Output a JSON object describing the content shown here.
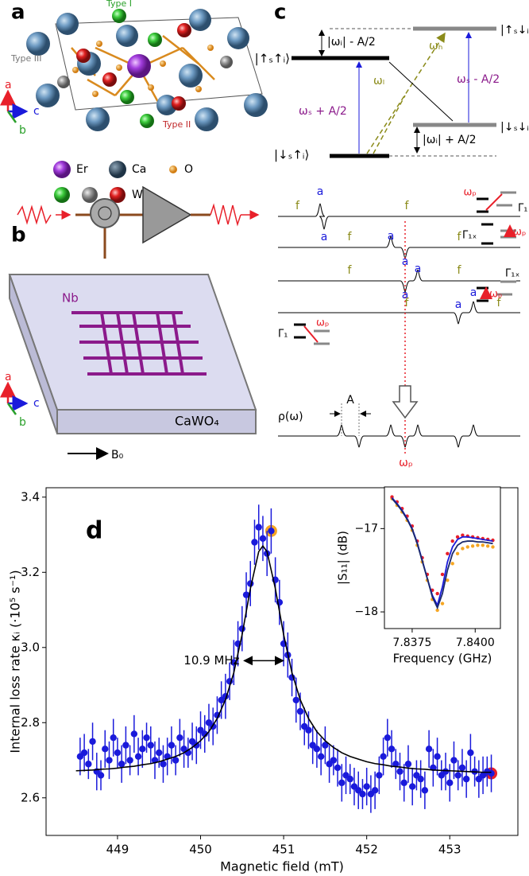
{
  "figure": {
    "panel_labels": [
      "a",
      "b",
      "c"
    ],
    "crystal": {
      "type_labels": [
        "Type I",
        "Type III",
        "Type II"
      ],
      "axes": [
        "a",
        "c",
        "b"
      ],
      "legend": [
        "Er",
        "Ca",
        "O",
        "W"
      ]
    },
    "circuit": {
      "material": "Nb",
      "substrate": "CaWO₄",
      "axes": [
        "a",
        "c",
        "b"
      ],
      "field": "B₀"
    },
    "levels": {
      "states": [
        "|↑ₛ↓ᵢ⟩",
        "|↑ₛ↑ᵢ⟩",
        "|↓ₛ↓ᵢ⟩",
        "|↓ₛ↑ᵢ⟩"
      ],
      "transitions": [
        "ωₛ + A/2",
        "ωₛ - A/2",
        "ωₕ",
        "ωₗ"
      ],
      "splittings": [
        "|ωᵢ| - A/2",
        "|ωᵢ| + A/2"
      ]
    },
    "spectra": {
      "rows": [
        [
          "f",
          "a",
          "a",
          "f"
        ],
        [
          "f",
          "a",
          "a",
          "f"
        ],
        [
          "f",
          "a",
          "a",
          "f"
        ],
        [
          "f",
          "a",
          "a",
          "f"
        ]
      ],
      "insets": [
        [
          "ωₚ",
          "Γ₁"
        ],
        [
          "Γ₁ₓ",
          "ωₚ"
        ],
        [
          "Γ₁ₓ",
          "ωₚ"
        ],
        [
          "Γ₁",
          "ωₚ"
        ]
      ],
      "density": "ρ(ω)",
      "width": "A",
      "pump": "ωₚ"
    }
  },
  "chart_data": [
    {
      "type": "scatter",
      "panel_label": "d",
      "xlabel": "Magnetic field (mT)",
      "ylabel": "Internal loss rate κᵢ (·10⁵ s⁻¹)",
      "xlim": [
        448.14,
        453.82
      ],
      "ylim": [
        2.5,
        3.425
      ],
      "xticks": [
        449,
        450,
        451,
        452,
        453
      ],
      "yticks": [
        2.6,
        2.8,
        {
          "value": 3,
          "label": "3.0"
        },
        3.2,
        3.4
      ],
      "annotation": {
        "text": "10.9 MHz",
        "x": [
          450.45,
          451.07
        ],
        "y": 2.965
      },
      "series": [
        {
          "mode": "ring",
          "color": "#f5a623",
          "x": [
            450.85
          ],
          "values": [
            3.31
          ]
        },
        {
          "mode": "ring",
          "color": "#e8202a",
          "x": [
            453.5
          ],
          "values": [
            2.665
          ]
        },
        {
          "mode": "markers",
          "color": "#1a1adb",
          "x": [
            448.55,
            448.6,
            448.65,
            448.7,
            448.75,
            448.8,
            448.85,
            448.9,
            448.95,
            449,
            449.05,
            449.1,
            449.15,
            449.2,
            449.25,
            449.3,
            449.35,
            449.4,
            449.45,
            449.5,
            449.55,
            449.6,
            449.65,
            449.7,
            449.75,
            449.8,
            449.85,
            449.9,
            449.95,
            450,
            450.05,
            450.1,
            450.15,
            450.2,
            450.25,
            450.3,
            450.35,
            450.4,
            450.45,
            450.5,
            450.55,
            450.6,
            450.65,
            450.7,
            450.75,
            450.8,
            450.85,
            450.9,
            450.95,
            451,
            451.05,
            451.1,
            451.15,
            451.2,
            451.25,
            451.3,
            451.35,
            451.4,
            451.45,
            451.5,
            451.55,
            451.6,
            451.65,
            451.7,
            451.75,
            451.8,
            451.85,
            451.9,
            451.95,
            452,
            452.05,
            452.1,
            452.15,
            452.2,
            452.25,
            452.3,
            452.35,
            452.4,
            452.45,
            452.5,
            452.55,
            452.6,
            452.65,
            452.7,
            452.75,
            452.8,
            452.85,
            452.9,
            452.95,
            453,
            453.05,
            453.1,
            453.15,
            453.2,
            453.25,
            453.3,
            453.35,
            453.4,
            453.45,
            453.5
          ],
          "values": [
            2.71,
            2.72,
            2.69,
            2.75,
            2.67,
            2.66,
            2.73,
            2.7,
            2.76,
            2.72,
            2.69,
            2.74,
            2.7,
            2.77,
            2.71,
            2.73,
            2.76,
            2.74,
            2.7,
            2.72,
            2.69,
            2.71,
            2.74,
            2.7,
            2.76,
            2.73,
            2.72,
            2.75,
            2.74,
            2.78,
            2.77,
            2.8,
            2.79,
            2.82,
            2.86,
            2.87,
            2.91,
            2.96,
            3.01,
            3.05,
            3.14,
            3.17,
            3.28,
            3.32,
            3.29,
            3.25,
            3.31,
            3.18,
            3.12,
            3.01,
            2.98,
            2.92,
            2.86,
            2.83,
            2.79,
            2.78,
            2.74,
            2.73,
            2.71,
            2.74,
            2.69,
            2.7,
            2.68,
            2.64,
            2.66,
            2.65,
            2.63,
            2.62,
            2.61,
            2.63,
            2.61,
            2.62,
            2.66,
            2.71,
            2.76,
            2.73,
            2.69,
            2.67,
            2.64,
            2.69,
            2.63,
            2.66,
            2.65,
            2.62,
            2.73,
            2.68,
            2.71,
            2.66,
            2.67,
            2.64,
            2.7,
            2.66,
            2.68,
            2.65,
            2.72,
            2.67,
            2.65,
            2.66,
            2.67,
            2.665
          ],
          "errors": [
            0.05,
            0.05,
            0.04,
            0.05,
            0.05,
            0.04,
            0.05,
            0.05,
            0.05,
            0.04,
            0.05,
            0.05,
            0.04,
            0.05,
            0.05,
            0.05,
            0.04,
            0.05,
            0.05,
            0.04,
            0.05,
            0.05,
            0.05,
            0.04,
            0.05,
            0.05,
            0.04,
            0.05,
            0.05,
            0.05,
            0.05,
            0.05,
            0.05,
            0.05,
            0.05,
            0.06,
            0.05,
            0.06,
            0.06,
            0.06,
            0.06,
            0.06,
            0.06,
            0.06,
            0.06,
            0.06,
            0.06,
            0.06,
            0.06,
            0.06,
            0.06,
            0.05,
            0.06,
            0.05,
            0.05,
            0.05,
            0.05,
            0.05,
            0.05,
            0.05,
            0.05,
            0.04,
            0.05,
            0.05,
            0.05,
            0.04,
            0.05,
            0.05,
            0.04,
            0.05,
            0.05,
            0.05,
            0.05,
            0.05,
            0.05,
            0.05,
            0.04,
            0.05,
            0.05,
            0.05,
            0.05,
            0.04,
            0.05,
            0.05,
            0.05,
            0.05,
            0.05,
            0.04,
            0.05,
            0.05,
            0.05,
            0.04,
            0.05,
            0.05,
            0.05,
            0.04,
            0.05,
            0.05,
            0.04,
            0.05
          ]
        },
        {
          "mode": "line",
          "color": "#000000",
          "x": [
            448.5,
            448.6,
            448.7,
            448.8,
            448.9,
            449,
            449.1,
            449.2,
            449.3,
            449.4,
            449.5,
            449.6,
            449.7,
            449.8,
            449.9,
            450,
            450.1,
            450.2,
            450.3,
            450.4,
            450.5,
            450.6,
            450.7,
            450.75,
            450.8,
            450.9,
            451,
            451.1,
            451.2,
            451.3,
            451.4,
            451.5,
            451.6,
            451.7,
            451.8,
            451.9,
            452,
            452.1,
            452.2,
            452.3,
            452.4,
            452.5,
            452.6,
            452.7,
            452.8,
            452.9,
            453,
            453.1,
            453.2,
            453.3,
            453.4,
            453.5
          ],
          "values": [
            2.672,
            2.673,
            2.674,
            2.676,
            2.677,
            2.679,
            2.682,
            2.684,
            2.688,
            2.691,
            2.696,
            2.703,
            2.71,
            2.72,
            2.734,
            2.752,
            2.776,
            2.811,
            2.861,
            2.933,
            3.034,
            3.157,
            3.255,
            3.27,
            3.255,
            3.157,
            3.034,
            2.933,
            2.861,
            2.811,
            2.776,
            2.752,
            2.734,
            2.72,
            2.71,
            2.703,
            2.696,
            2.691,
            2.688,
            2.684,
            2.682,
            2.679,
            2.677,
            2.676,
            2.674,
            2.673,
            2.672,
            2.671,
            2.67,
            2.669,
            2.668,
            2.668
          ]
        }
      ]
    },
    {
      "type": "scatter",
      "xlabel": "Frequency (GHz)",
      "ylabel": "|S₁₁| (dB)",
      "xlim": [
        7.8364,
        7.841
      ],
      "ylim": [
        -18.2,
        -16.5
      ],
      "xticks": [
        7.8375,
        {
          "value": 7.84,
          "label": "7.8400"
        }
      ],
      "yticks": [
        {
          "value": -17,
          "label": "−17"
        },
        {
          "value": -18,
          "label": "−18"
        }
      ],
      "series": [
        {
          "mode": "markers",
          "color": "#f5a623",
          "x": [
            7.8367,
            7.8369,
            7.8371,
            7.8373,
            7.8375,
            7.8377,
            7.8379,
            7.8381,
            7.8383,
            7.8385,
            7.8387,
            7.8389,
            7.8391,
            7.8393,
            7.8395,
            7.8397,
            7.8399,
            7.8401,
            7.8403,
            7.8405,
            7.8407
          ],
          "values": [
            -16.64,
            -16.72,
            -16.8,
            -16.9,
            -17.02,
            -17.2,
            -17.4,
            -17.62,
            -17.85,
            -17.98,
            -17.9,
            -17.62,
            -17.42,
            -17.3,
            -17.24,
            -17.22,
            -17.21,
            -17.2,
            -17.2,
            -17.21,
            -17.22
          ]
        },
        {
          "mode": "markers",
          "color": "#e8202a",
          "x": [
            7.8367,
            7.8369,
            7.8371,
            7.8373,
            7.8375,
            7.8377,
            7.8379,
            7.8381,
            7.8383,
            7.8385,
            7.8387,
            7.8389,
            7.8391,
            7.8393,
            7.8395,
            7.8397,
            7.8399,
            7.8401,
            7.8403,
            7.8405,
            7.8407
          ],
          "values": [
            -16.62,
            -16.68,
            -16.76,
            -16.85,
            -16.97,
            -17.15,
            -17.35,
            -17.55,
            -17.74,
            -17.78,
            -17.55,
            -17.3,
            -17.15,
            -17.1,
            -17.08,
            -17.09,
            -17.1,
            -17.11,
            -17.12,
            -17.13,
            -17.14
          ]
        },
        {
          "mode": "line",
          "color": "#1a1adb",
          "x": [
            7.8367,
            7.8369,
            7.8371,
            7.8373,
            7.8375,
            7.8377,
            7.8379,
            7.8381,
            7.8383,
            7.8385,
            7.8387,
            7.8389,
            7.8391,
            7.8393,
            7.8395,
            7.8397,
            7.8399,
            7.8401,
            7.8403,
            7.8405,
            7.8407
          ],
          "values": [
            -16.63,
            -16.7,
            -16.78,
            -16.88,
            -17,
            -17.17,
            -17.38,
            -17.6,
            -17.8,
            -17.92,
            -17.7,
            -17.4,
            -17.22,
            -17.13,
            -17.1,
            -17.1,
            -17.11,
            -17.12,
            -17.13,
            -17.14,
            -17.15
          ]
        },
        {
          "mode": "line",
          "color": "#1b2a6b",
          "x": [
            7.8367,
            7.8369,
            7.8371,
            7.8373,
            7.8375,
            7.8377,
            7.8379,
            7.8381,
            7.8383,
            7.8385,
            7.8387,
            7.8389,
            7.8391,
            7.8393,
            7.8395,
            7.8397,
            7.8399,
            7.8401,
            7.8403,
            7.8405,
            7.8407
          ],
          "values": [
            -16.64,
            -16.71,
            -16.79,
            -16.89,
            -17.01,
            -17.18,
            -17.39,
            -17.6,
            -17.82,
            -17.95,
            -17.78,
            -17.5,
            -17.3,
            -17.2,
            -17.16,
            -17.15,
            -17.15,
            -17.16,
            -17.16,
            -17.17,
            -17.18
          ]
        }
      ]
    }
  ]
}
